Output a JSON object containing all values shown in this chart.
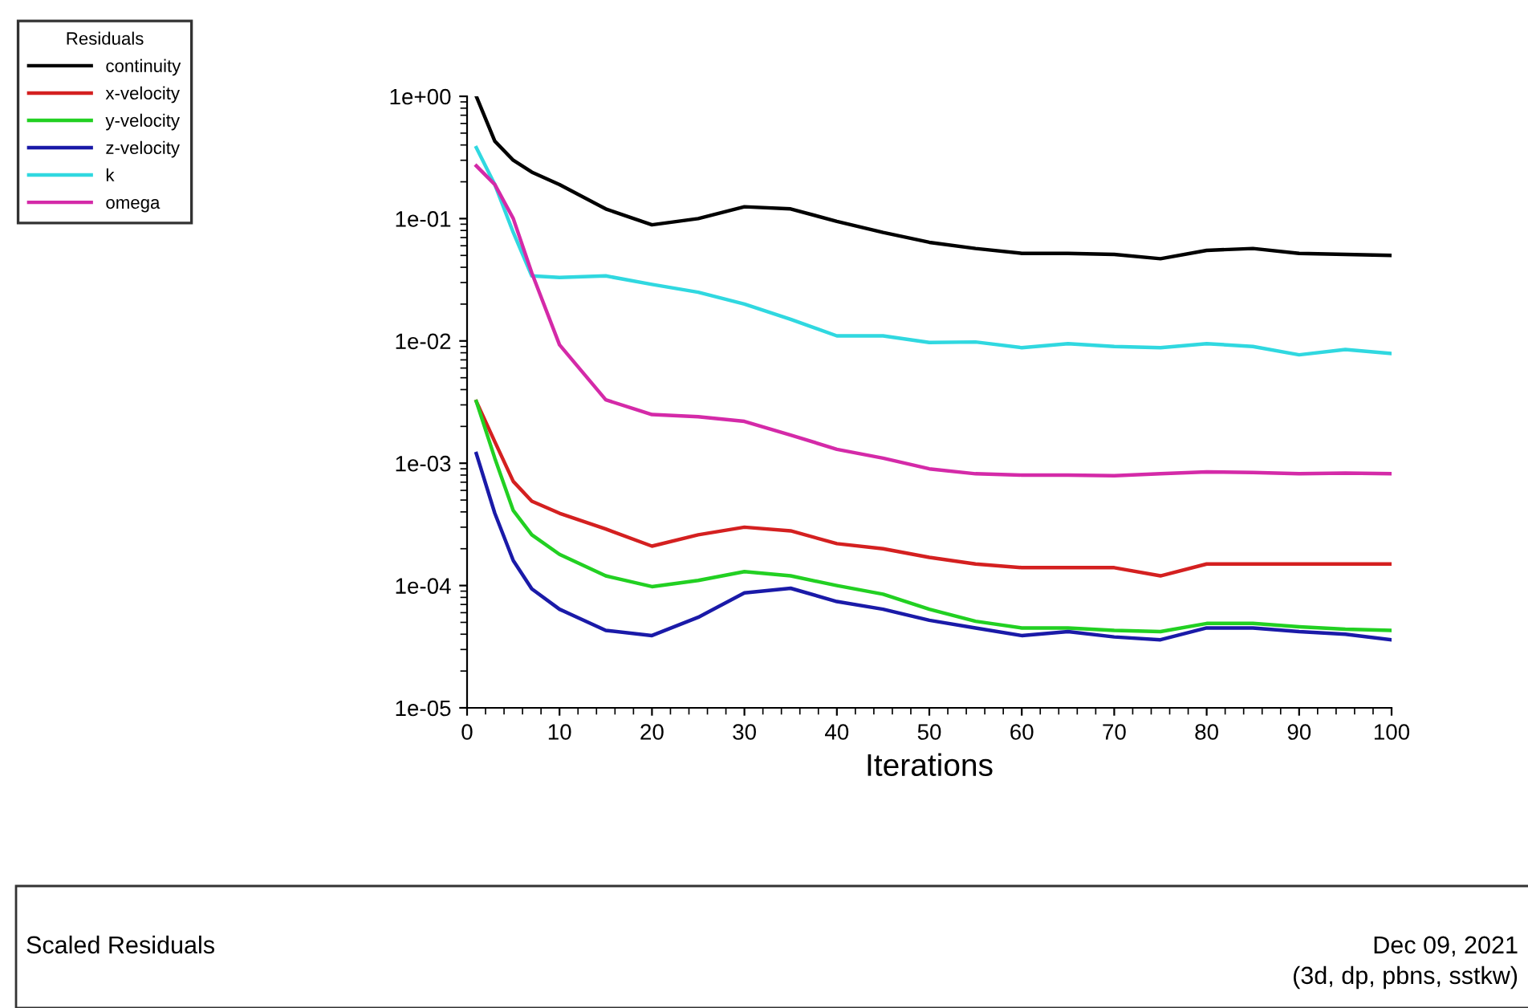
{
  "chart_data": {
    "type": "line",
    "xlabel": "Iterations",
    "legend_title": "Residuals",
    "legend": "top left",
    "log": "y",
    "grid": false,
    "marker": "none",
    "line_style": "solid",
    "x": [
      1,
      3,
      5,
      7,
      10,
      15,
      20,
      25,
      30,
      35,
      40,
      45,
      50,
      55,
      60,
      65,
      70,
      75,
      80,
      85,
      90,
      95,
      100
    ],
    "xlim": [
      0,
      100
    ],
    "xticks": [
      0,
      10,
      20,
      30,
      40,
      50,
      60,
      70,
      80,
      90,
      100
    ],
    "ylim": [
      1e-05,
      1
    ],
    "yticks": [
      {
        "value": 1e-05,
        "label": "1e-05"
      },
      {
        "value": 0.0001,
        "label": "1e-04"
      },
      {
        "value": 0.001,
        "label": "1e-03"
      },
      {
        "value": 0.01,
        "label": "1e-02"
      },
      {
        "value": 0.1,
        "label": "1e-01"
      },
      {
        "value": 1,
        "label": "1e+00"
      }
    ],
    "series": [
      {
        "name": "continuity",
        "color": "#000000",
        "values": [
          1.0,
          0.43,
          0.3,
          0.24,
          0.19,
          0.12,
          0.089,
          0.1,
          0.125,
          0.12,
          0.095,
          0.077,
          0.064,
          0.057,
          0.052,
          0.052,
          0.051,
          0.047,
          0.055,
          0.057,
          0.052,
          0.051,
          0.05
        ]
      },
      {
        "name": "x-velocity",
        "color": "#d42020",
        "values": [
          0.0032,
          0.0015,
          0.00071,
          0.00049,
          0.00039,
          0.00029,
          0.00021,
          0.00026,
          0.0003,
          0.00028,
          0.00022,
          0.0002,
          0.00017,
          0.00015,
          0.00014,
          0.00014,
          0.00014,
          0.00012,
          0.00015,
          0.00015,
          0.00015,
          0.00015,
          0.00015
        ]
      },
      {
        "name": "y-velocity",
        "color": "#22d022",
        "values": [
          0.0032,
          0.0011,
          0.00041,
          0.00026,
          0.00018,
          0.00012,
          9.8e-05,
          0.00011,
          0.00013,
          0.00012,
          0.0001,
          8.5e-05,
          6.4e-05,
          5.1e-05,
          4.5e-05,
          4.5e-05,
          4.3e-05,
          4.2e-05,
          4.9e-05,
          4.9e-05,
          4.6e-05,
          4.4e-05,
          4.3e-05
        ]
      },
      {
        "name": "z-velocity",
        "color": "#1a1aa8",
        "values": [
          0.0012,
          0.00039,
          0.00016,
          9.4e-05,
          6.4e-05,
          4.3e-05,
          3.9e-05,
          5.5e-05,
          8.7e-05,
          9.5e-05,
          7.4e-05,
          6.4e-05,
          5.2e-05,
          4.5e-05,
          3.9e-05,
          4.2e-05,
          3.8e-05,
          3.6e-05,
          4.5e-05,
          4.5e-05,
          4.2e-05,
          4e-05,
          3.6e-05
        ]
      },
      {
        "name": "k",
        "color": "#30d8e0",
        "values": [
          0.38,
          0.19,
          0.077,
          0.034,
          0.033,
          0.034,
          0.029,
          0.025,
          0.02,
          0.015,
          0.011,
          0.011,
          0.0097,
          0.0098,
          0.0088,
          0.0095,
          0.009,
          0.0088,
          0.0095,
          0.009,
          0.0077,
          0.0085,
          0.0079
        ]
      },
      {
        "name": "omega",
        "color": "#d42aa8",
        "values": [
          0.27,
          0.19,
          0.1,
          0.036,
          0.0093,
          0.0033,
          0.0025,
          0.0024,
          0.0022,
          0.0017,
          0.0013,
          0.0011,
          0.0009,
          0.00082,
          0.0008,
          0.0008,
          0.00079,
          0.00082,
          0.00085,
          0.00084,
          0.00082,
          0.00083,
          0.00082
        ]
      }
    ],
    "annotations": [
      "Scaled Residuals",
      "Dec 09, 2021",
      "(3d, dp, pbns, sstkw)"
    ]
  }
}
